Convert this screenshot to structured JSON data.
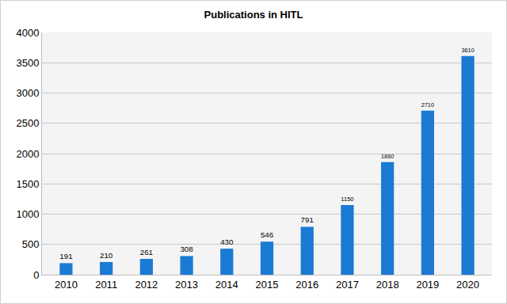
{
  "chart_data": {
    "type": "bar",
    "title": "Publications in HITL",
    "categories": [
      "2010",
      "2011",
      "2012",
      "2013",
      "2014",
      "2015",
      "2016",
      "2017",
      "2018",
      "2019",
      "2020"
    ],
    "values": [
      191,
      210,
      261,
      308,
      430,
      546,
      791,
      1150,
      1860,
      2710,
      3610
    ],
    "color": "#1a7ad4",
    "ylim": [
      0,
      4000
    ],
    "yticks": [
      0,
      500,
      1000,
      1500,
      2000,
      2500,
      3000,
      3500,
      4000
    ],
    "grid": true,
    "data_labels": true
  }
}
